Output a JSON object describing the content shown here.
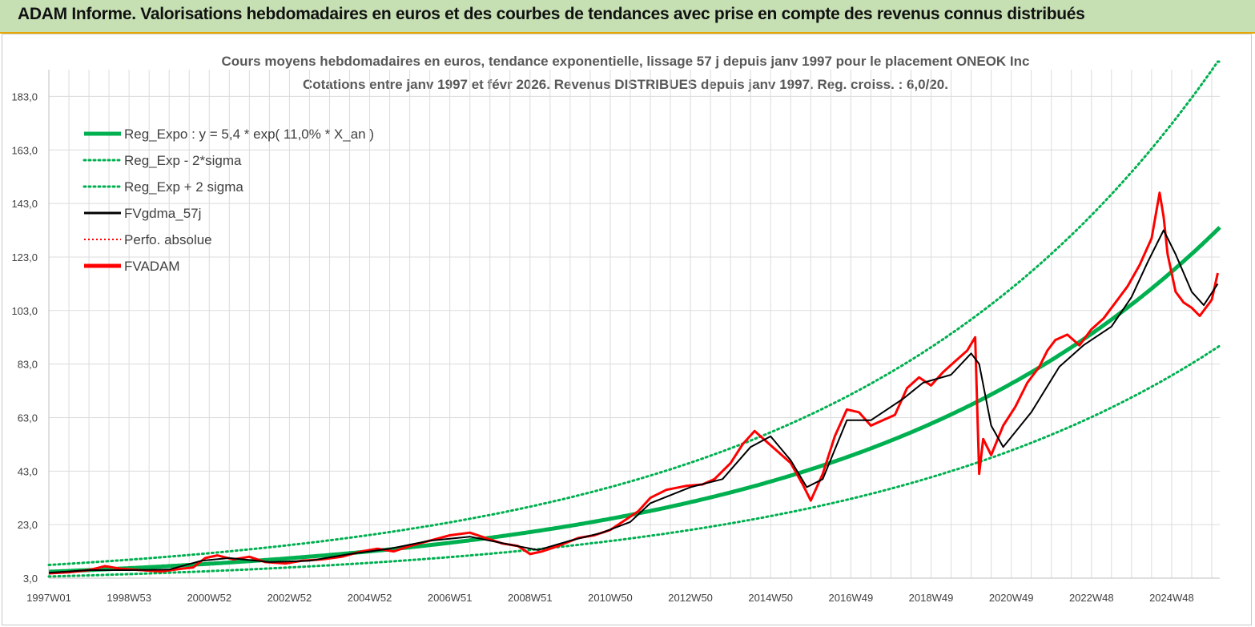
{
  "header": {
    "title": "ADAM Informe. Valorisations hebdomadaires en euros et des courbes de tendances avec prise en compte des revenus connus distribués"
  },
  "colors": {
    "header_bg": "#c6e0b4",
    "reg_expo": "#00b050",
    "sigma_bands": "#00b050",
    "fvgdma": "#000000",
    "perfo": "#ff0000",
    "fvadam": "#ff0000"
  },
  "chart_data": {
    "type": "line",
    "title_line1": "Cours moyens hebdomadaires en euros, tendance exponentielle, lissage 57 j depuis janv 1997 pour le placement ONEOK Inc",
    "title_line2": "Cotations entre janv 1997 et févr 2026. Revenus DISTRIBUES depuis janv 1997. Reg. croiss. : 6,0/20.",
    "ylim": [
      3.0,
      193.0
    ],
    "y_ticks": [
      "3,0",
      "23,0",
      "43,0",
      "63,0",
      "83,0",
      "103,0",
      "123,0",
      "143,0",
      "163,0",
      "183,0"
    ],
    "y_tick_values": [
      3,
      23,
      43,
      63,
      83,
      103,
      123,
      143,
      163,
      183
    ],
    "x_range": [
      1997.0,
      2026.2
    ],
    "x_ticks": [
      "1997W01",
      "1998W53",
      "2000W52",
      "2002W52",
      "2004W52",
      "2006W51",
      "2008W51",
      "2010W50",
      "2012W50",
      "2014W50",
      "2016W49",
      "2018W49",
      "2020W49",
      "2022W48",
      "2024W48"
    ],
    "x_tick_years": [
      1997.0,
      1999.0,
      2001.0,
      2003.0,
      2005.0,
      2007.0,
      2009.0,
      2011.0,
      2013.0,
      2015.0,
      2017.0,
      2019.0,
      2021.0,
      2023.0,
      2025.0
    ],
    "legend": [
      {
        "label": "Reg_Expo : y = 5,4 * exp( 11,0% *  X_an )",
        "style": "solid-thick",
        "color": "#00b050"
      },
      {
        "label": "Reg_Exp - 2*sigma",
        "style": "dotted",
        "color": "#00b050"
      },
      {
        "label": "Reg_Exp + 2 sigma",
        "style": "dotted",
        "color": "#00b050"
      },
      {
        "label": "FVgdma_57j",
        "style": "solid",
        "color": "#000000"
      },
      {
        "label": "Perfo. absolue",
        "style": "dotted-thin",
        "color": "#ff0000"
      },
      {
        "label": "FVADAM",
        "style": "solid-thick",
        "color": "#ff0000"
      }
    ],
    "series": [
      {
        "name": "Reg_Expo",
        "formula": {
          "a": 5.4,
          "rate": 0.11,
          "factor": 1.0
        }
      },
      {
        "name": "Reg_Exp - 2*sigma",
        "formula": {
          "a": 5.4,
          "rate": 0.11,
          "factor": 0.67
        }
      },
      {
        "name": "Reg_Exp + 2 sigma",
        "formula": {
          "a": 5.4,
          "rate": 0.11,
          "factor": 1.47
        }
      },
      {
        "name": "FVADAM",
        "x": [
          1997.0,
          1997.5,
          1998.0,
          1998.4,
          1998.8,
          1999.3,
          1999.8,
          2000.3,
          2000.6,
          2000.9,
          2001.2,
          2001.6,
          2002.0,
          2002.4,
          2002.9,
          2003.3,
          2003.8,
          2004.3,
          2004.8,
          2005.2,
          2005.6,
          2006.0,
          2006.5,
          2007.0,
          2007.5,
          2007.9,
          2008.3,
          2008.7,
          2009.0,
          2009.3,
          2009.7,
          2010.2,
          2010.6,
          2011.0,
          2011.4,
          2011.7,
          2012.0,
          2012.4,
          2012.9,
          2013.3,
          2013.6,
          2014.0,
          2014.3,
          2014.6,
          2014.9,
          2015.2,
          2015.5,
          2015.8,
          2016.0,
          2016.3,
          2016.6,
          2016.9,
          2017.2,
          2017.5,
          2017.8,
          2018.1,
          2018.4,
          2018.7,
          2019.0,
          2019.3,
          2019.6,
          2019.9,
          2020.1,
          2020.2,
          2020.3,
          2020.5,
          2020.8,
          2021.1,
          2021.4,
          2021.7,
          2021.9,
          2022.1,
          2022.4,
          2022.7,
          2023.0,
          2023.3,
          2023.6,
          2023.9,
          2024.2,
          2024.5,
          2024.7,
          2024.8,
          2024.9,
          2025.1,
          2025.3,
          2025.5,
          2025.7,
          2025.9,
          2026.0,
          2026.15
        ],
        "values": [
          4.8,
          5.2,
          6.0,
          7.5,
          6.5,
          6.0,
          5.5,
          6.5,
          7.0,
          10.5,
          11.5,
          10.0,
          11.0,
          9.0,
          8.5,
          9.5,
          10.0,
          11.0,
          13.0,
          14.0,
          13.0,
          15.0,
          17.0,
          19.0,
          20.0,
          18.0,
          16.0,
          15.0,
          12.0,
          13.0,
          15.0,
          18.0,
          19.0,
          21.0,
          25.0,
          28.0,
          33.0,
          36.0,
          37.5,
          38.0,
          40.0,
          46.0,
          53.0,
          58.0,
          54.0,
          50.0,
          46.0,
          38.0,
          32.0,
          42.0,
          56.0,
          66.0,
          65.0,
          60.0,
          62.0,
          64.0,
          74.0,
          78.0,
          75.0,
          80.0,
          84.0,
          88.0,
          93.0,
          42.0,
          55.0,
          49.0,
          60.0,
          67.0,
          76.0,
          82.0,
          88.0,
          92.0,
          94.0,
          90.0,
          96.0,
          100.0,
          106.0,
          112.0,
          120.0,
          130.0,
          147.0,
          138.0,
          124.0,
          110.0,
          106.0,
          104.0,
          101.0,
          105.0,
          107.0,
          117.0
        ]
      },
      {
        "name": "FVgdma_57j",
        "x": [
          1997.0,
          1998.0,
          1999.0,
          2000.0,
          2000.8,
          2001.5,
          2002.5,
          2003.5,
          2004.5,
          2005.5,
          2006.5,
          2007.5,
          2008.5,
          2009.2,
          2010.0,
          2010.8,
          2011.5,
          2012.0,
          2013.0,
          2013.8,
          2014.5,
          2015.0,
          2015.5,
          2015.9,
          2016.3,
          2016.9,
          2017.5,
          2018.3,
          2018.8,
          2019.5,
          2020.0,
          2020.2,
          2020.5,
          2020.8,
          2021.5,
          2022.2,
          2022.8,
          2023.5,
          2024.0,
          2024.4,
          2024.8,
          2025.1,
          2025.5,
          2025.8,
          2026.15
        ],
        "values": [
          5.0,
          6.0,
          6.0,
          6.2,
          9.5,
          10.5,
          9.0,
          9.5,
          12.0,
          14.0,
          17.0,
          18.5,
          15.5,
          13.5,
          17.0,
          20.0,
          24.0,
          31.0,
          37.0,
          40.0,
          52.0,
          56.0,
          47.0,
          37.0,
          40.0,
          62.0,
          62.0,
          70.0,
          76.0,
          79.0,
          87.0,
          83.0,
          60.0,
          52.0,
          65.0,
          82.0,
          90.0,
          97.0,
          108.0,
          121.0,
          133.0,
          124.0,
          110.0,
          105.0,
          113.0
        ]
      }
    ]
  }
}
